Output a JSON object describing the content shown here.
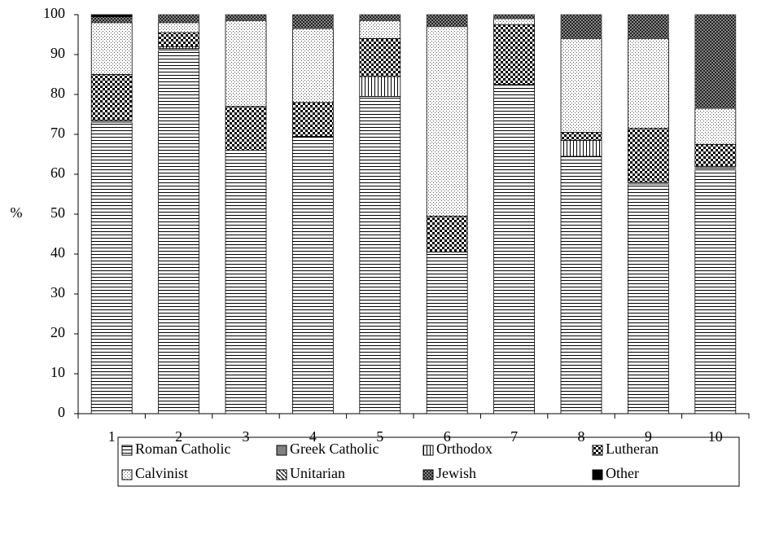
{
  "chart_data": {
    "type": "stacked-bar",
    "y_label": "%",
    "categories": [
      "1",
      "2",
      "3",
      "4",
      "5",
      "6",
      "7",
      "8",
      "9",
      "10"
    ],
    "ylim": [
      0,
      100
    ],
    "yticks": [
      0,
      10,
      20,
      30,
      40,
      50,
      60,
      70,
      80,
      90,
      100
    ],
    "series": [
      {
        "name": "Roman Catholic",
        "pattern": "hlines",
        "color": "#000000",
        "values": [
          73,
          91,
          66,
          69.5,
          79.5,
          40.5,
          82.5,
          64.5,
          57.5,
          61
        ]
      },
      {
        "name": "Greek Catholic",
        "pattern": "solid-gray",
        "color": "#808080",
        "values": [
          0.5,
          0.5,
          0,
          0,
          0,
          0,
          0,
          0,
          0.5,
          1
        ]
      },
      {
        "name": "Orthodox",
        "pattern": "vlines",
        "color": "#000000",
        "values": [
          0,
          0.5,
          0,
          0,
          5,
          0,
          0,
          4,
          0,
          0
        ]
      },
      {
        "name": "Lutheran",
        "pattern": "check",
        "color": "#000000",
        "values": [
          11.5,
          3.5,
          11,
          8.5,
          9.5,
          9,
          15,
          2,
          13.5,
          5.5
        ]
      },
      {
        "name": "Calvinist",
        "pattern": "dots",
        "color": "#000000",
        "values": [
          13,
          2.5,
          21.5,
          18.5,
          4.5,
          47.5,
          1.5,
          23.5,
          22.5,
          9
        ]
      },
      {
        "name": "Unitarian",
        "pattern": "diag",
        "color": "#000000",
        "values": [
          0,
          0,
          0,
          0,
          0,
          0,
          0,
          0,
          0,
          0
        ]
      },
      {
        "name": "Jewish",
        "pattern": "darkcheck",
        "color": "#404040",
        "values": [
          1.5,
          2,
          1.5,
          3.5,
          1.5,
          3,
          1,
          6,
          6,
          23.5
        ]
      },
      {
        "name": "Other",
        "pattern": "solid-black",
        "color": "#000000",
        "values": [
          0.5,
          0,
          0,
          0,
          0,
          0,
          0,
          0,
          0,
          0
        ]
      }
    ]
  }
}
